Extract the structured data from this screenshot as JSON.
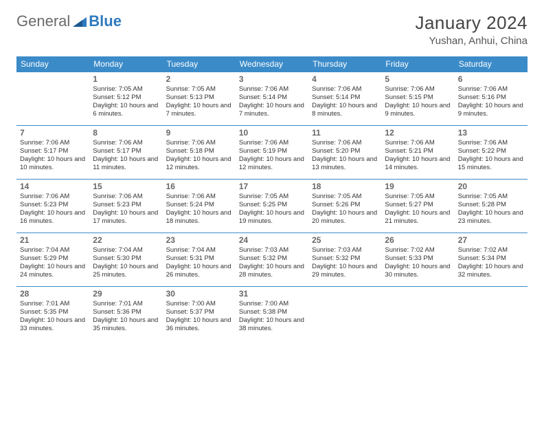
{
  "brand": {
    "part1": "General",
    "part2": "Blue"
  },
  "title": "January 2024",
  "location": "Yushan, Anhui, China",
  "colors": {
    "header_bg": "#3b8bc9",
    "header_text": "#ffffff",
    "border": "#3b8bc9",
    "text": "#333333",
    "daynum": "#666666",
    "brand_gray": "#6a6a6a",
    "brand_blue": "#2f7abf",
    "page_bg": "#ffffff"
  },
  "typography": {
    "title_fontsize": 26,
    "location_fontsize": 15,
    "dayheader_fontsize": 12,
    "daynum_fontsize": 12,
    "detail_fontsize": 9.5
  },
  "dayHeaders": [
    "Sunday",
    "Monday",
    "Tuesday",
    "Wednesday",
    "Thursday",
    "Friday",
    "Saturday"
  ],
  "weeks": [
    [
      null,
      {
        "n": "1",
        "sr": "7:05 AM",
        "ss": "5:12 PM",
        "dl": "10 hours and 6 minutes."
      },
      {
        "n": "2",
        "sr": "7:05 AM",
        "ss": "5:13 PM",
        "dl": "10 hours and 7 minutes."
      },
      {
        "n": "3",
        "sr": "7:06 AM",
        "ss": "5:14 PM",
        "dl": "10 hours and 7 minutes."
      },
      {
        "n": "4",
        "sr": "7:06 AM",
        "ss": "5:14 PM",
        "dl": "10 hours and 8 minutes."
      },
      {
        "n": "5",
        "sr": "7:06 AM",
        "ss": "5:15 PM",
        "dl": "10 hours and 9 minutes."
      },
      {
        "n": "6",
        "sr": "7:06 AM",
        "ss": "5:16 PM",
        "dl": "10 hours and 9 minutes."
      }
    ],
    [
      {
        "n": "7",
        "sr": "7:06 AM",
        "ss": "5:17 PM",
        "dl": "10 hours and 10 minutes."
      },
      {
        "n": "8",
        "sr": "7:06 AM",
        "ss": "5:17 PM",
        "dl": "10 hours and 11 minutes."
      },
      {
        "n": "9",
        "sr": "7:06 AM",
        "ss": "5:18 PM",
        "dl": "10 hours and 12 minutes."
      },
      {
        "n": "10",
        "sr": "7:06 AM",
        "ss": "5:19 PM",
        "dl": "10 hours and 12 minutes."
      },
      {
        "n": "11",
        "sr": "7:06 AM",
        "ss": "5:20 PM",
        "dl": "10 hours and 13 minutes."
      },
      {
        "n": "12",
        "sr": "7:06 AM",
        "ss": "5:21 PM",
        "dl": "10 hours and 14 minutes."
      },
      {
        "n": "13",
        "sr": "7:06 AM",
        "ss": "5:22 PM",
        "dl": "10 hours and 15 minutes."
      }
    ],
    [
      {
        "n": "14",
        "sr": "7:06 AM",
        "ss": "5:23 PM",
        "dl": "10 hours and 16 minutes."
      },
      {
        "n": "15",
        "sr": "7:06 AM",
        "ss": "5:23 PM",
        "dl": "10 hours and 17 minutes."
      },
      {
        "n": "16",
        "sr": "7:06 AM",
        "ss": "5:24 PM",
        "dl": "10 hours and 18 minutes."
      },
      {
        "n": "17",
        "sr": "7:05 AM",
        "ss": "5:25 PM",
        "dl": "10 hours and 19 minutes."
      },
      {
        "n": "18",
        "sr": "7:05 AM",
        "ss": "5:26 PM",
        "dl": "10 hours and 20 minutes."
      },
      {
        "n": "19",
        "sr": "7:05 AM",
        "ss": "5:27 PM",
        "dl": "10 hours and 21 minutes."
      },
      {
        "n": "20",
        "sr": "7:05 AM",
        "ss": "5:28 PM",
        "dl": "10 hours and 23 minutes."
      }
    ],
    [
      {
        "n": "21",
        "sr": "7:04 AM",
        "ss": "5:29 PM",
        "dl": "10 hours and 24 minutes."
      },
      {
        "n": "22",
        "sr": "7:04 AM",
        "ss": "5:30 PM",
        "dl": "10 hours and 25 minutes."
      },
      {
        "n": "23",
        "sr": "7:04 AM",
        "ss": "5:31 PM",
        "dl": "10 hours and 26 minutes."
      },
      {
        "n": "24",
        "sr": "7:03 AM",
        "ss": "5:32 PM",
        "dl": "10 hours and 28 minutes."
      },
      {
        "n": "25",
        "sr": "7:03 AM",
        "ss": "5:32 PM",
        "dl": "10 hours and 29 minutes."
      },
      {
        "n": "26",
        "sr": "7:02 AM",
        "ss": "5:33 PM",
        "dl": "10 hours and 30 minutes."
      },
      {
        "n": "27",
        "sr": "7:02 AM",
        "ss": "5:34 PM",
        "dl": "10 hours and 32 minutes."
      }
    ],
    [
      {
        "n": "28",
        "sr": "7:01 AM",
        "ss": "5:35 PM",
        "dl": "10 hours and 33 minutes."
      },
      {
        "n": "29",
        "sr": "7:01 AM",
        "ss": "5:36 PM",
        "dl": "10 hours and 35 minutes."
      },
      {
        "n": "30",
        "sr": "7:00 AM",
        "ss": "5:37 PM",
        "dl": "10 hours and 36 minutes."
      },
      {
        "n": "31",
        "sr": "7:00 AM",
        "ss": "5:38 PM",
        "dl": "10 hours and 38 minutes."
      },
      null,
      null,
      null
    ]
  ],
  "labels": {
    "sunrise": "Sunrise: ",
    "sunset": "Sunset: ",
    "daylight": "Daylight: "
  }
}
